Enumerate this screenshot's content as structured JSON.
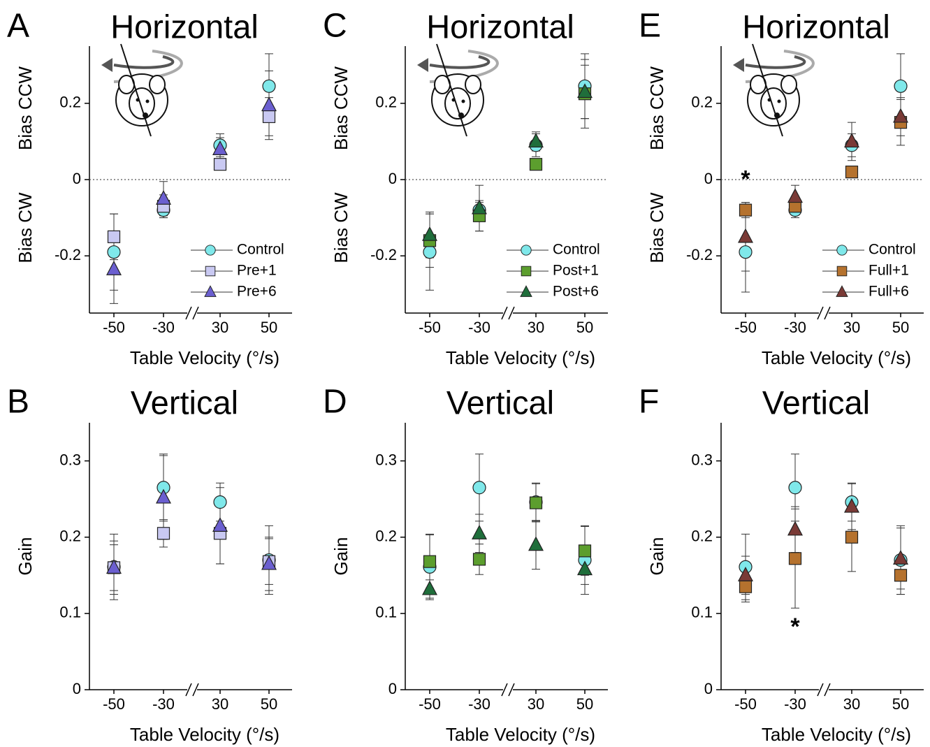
{
  "chart_data": [
    {
      "type": "scatter",
      "panel": "A",
      "title": "Horizontal",
      "ylabels": [
        "Bias CCW",
        "Bias CW"
      ],
      "xlabel": "Table Velocity (°/s)",
      "categories": [
        "-50",
        "-30",
        "30",
        "50"
      ],
      "ylim": [
        -0.35,
        0.35
      ],
      "yticks": [
        -0.2,
        0,
        0.2
      ],
      "zero_line": true,
      "legend": "lower right",
      "series": [
        {
          "name": "Control",
          "color": "#7fe8ea",
          "marker": "circle",
          "values": [
            -0.19,
            -0.08,
            0.09,
            0.245
          ],
          "errors": [
            0.1,
            0.02,
            0.03,
            0.085
          ]
        },
        {
          "name": "Pre+1",
          "color": "#c9c9f2",
          "marker": "square",
          "values": [
            -0.15,
            -0.07,
            0.04,
            0.165
          ],
          "errors": [
            0.06,
            0.03,
            0.01,
            0.05
          ]
        },
        {
          "name": "Pre+6",
          "color": "#6b5fd0",
          "marker": "triangle",
          "values": [
            -0.235,
            -0.05,
            0.08,
            0.195
          ],
          "errors": [
            0.09,
            0.045,
            0.03,
            0.09
          ]
        }
      ]
    },
    {
      "type": "scatter",
      "panel": "B",
      "title": "Vertical",
      "ylabel": "Gain",
      "xlabel": "Table Velocity (°/s)",
      "categories": [
        "-50",
        "-30",
        "30",
        "50"
      ],
      "ylim": [
        0,
        0.35
      ],
      "yticks": [
        0,
        0.1,
        0.2,
        0.3
      ],
      "series": [
        {
          "name": "Control",
          "color": "#7fe8ea",
          "marker": "circle",
          "values": [
            0.161,
            0.265,
            0.246,
            0.17
          ],
          "errors": [
            0.043,
            0.044,
            0.025,
            0.045
          ]
        },
        {
          "name": "Pre+1",
          "color": "#c9c9f2",
          "marker": "square",
          "values": [
            0.16,
            0.205,
            0.205,
            0.168
          ],
          "errors": [
            0.03,
            0.018,
            0.04,
            0.03
          ]
        },
        {
          "name": "Pre+6",
          "color": "#6b5fd0",
          "marker": "triangle",
          "values": [
            0.16,
            0.252,
            0.215,
            0.165
          ],
          "errors": [
            0.035,
            0.055,
            0.05,
            0.035
          ]
        }
      ]
    },
    {
      "type": "scatter",
      "panel": "C",
      "title": "Horizontal",
      "ylabels": [
        "Bias CCW",
        "Bias CW"
      ],
      "xlabel": "Table Velocity (°/s)",
      "categories": [
        "-50",
        "-30",
        "30",
        "50"
      ],
      "ylim": [
        -0.35,
        0.35
      ],
      "yticks": [
        -0.2,
        0,
        0.2
      ],
      "zero_line": true,
      "legend": "lower right",
      "series": [
        {
          "name": "Control",
          "color": "#7fe8ea",
          "marker": "circle",
          "values": [
            -0.19,
            -0.08,
            0.09,
            0.245
          ],
          "errors": [
            0.1,
            0.02,
            0.03,
            0.085
          ]
        },
        {
          "name": "Post+1",
          "color": "#5c9e2e",
          "marker": "square",
          "values": [
            -0.16,
            -0.095,
            0.04,
            0.225
          ],
          "errors": [
            0.07,
            0.04,
            0.01,
            0.09
          ]
        },
        {
          "name": "Post+6",
          "color": "#1f6e3b",
          "marker": "triangle",
          "values": [
            -0.145,
            -0.075,
            0.1,
            0.23
          ],
          "errors": [
            0.06,
            0.06,
            0.025,
            0.07
          ]
        }
      ]
    },
    {
      "type": "scatter",
      "panel": "D",
      "title": "Vertical",
      "ylabel": "Gain",
      "xlabel": "Table Velocity (°/s)",
      "categories": [
        "-50",
        "-30",
        "30",
        "50"
      ],
      "ylim": [
        0,
        0.35
      ],
      "yticks": [
        0,
        0.1,
        0.2,
        0.3
      ],
      "series": [
        {
          "name": "Control",
          "color": "#7fe8ea",
          "marker": "circle",
          "values": [
            0.161,
            0.265,
            0.246,
            0.17
          ],
          "errors": [
            0.043,
            0.044,
            0.025,
            0.045
          ]
        },
        {
          "name": "Post+1",
          "color": "#5c9e2e",
          "marker": "square",
          "values": [
            0.168,
            0.171,
            0.245,
            0.182
          ],
          "errors": [
            0.035,
            0.02,
            0.025,
            0.032
          ]
        },
        {
          "name": "Post+6",
          "color": "#1f6e3b",
          "marker": "triangle",
          "values": [
            0.132,
            0.205,
            0.19,
            0.158
          ],
          "errors": [
            0.012,
            0.025,
            0.032,
            0.02
          ]
        }
      ]
    },
    {
      "type": "scatter",
      "panel": "E",
      "title": "Horizontal",
      "ylabels": [
        "Bias CCW",
        "Bias CW"
      ],
      "xlabel": "Table Velocity (°/s)",
      "categories": [
        "-50",
        "-30",
        "30",
        "50"
      ],
      "ylim": [
        -0.35,
        0.35
      ],
      "yticks": [
        -0.2,
        0,
        0.2
      ],
      "zero_line": true,
      "legend": "lower right",
      "annotations": [
        {
          "text": "*",
          "x": "-50",
          "y": 0.012
        }
      ],
      "series": [
        {
          "name": "Control",
          "color": "#7fe8ea",
          "marker": "circle",
          "values": [
            -0.19,
            -0.08,
            0.09,
            0.245
          ],
          "errors": [
            0.105,
            0.02,
            0.03,
            0.085
          ]
        },
        {
          "name": "Full+1",
          "color": "#b5722e",
          "marker": "square",
          "values": [
            -0.08,
            -0.07,
            0.02,
            0.15
          ],
          "errors": [
            0.02,
            0.02,
            0.01,
            0.06
          ]
        },
        {
          "name": "Full+6",
          "color": "#7a3a36",
          "marker": "triangle",
          "values": [
            -0.15,
            -0.045,
            0.1,
            0.165
          ],
          "errors": [
            0.09,
            0.03,
            0.05,
            0.05
          ]
        }
      ]
    },
    {
      "type": "scatter",
      "panel": "F",
      "title": "Vertical",
      "ylabel": "Gain",
      "xlabel": "Table Velocity (°/s)",
      "categories": [
        "-50",
        "-30",
        "30",
        "50"
      ],
      "ylim": [
        0,
        0.35
      ],
      "yticks": [
        0,
        0.1,
        0.2,
        0.3
      ],
      "annotations": [
        {
          "text": "*",
          "x": "-30",
          "y": 0.088
        }
      ],
      "series": [
        {
          "name": "Control",
          "color": "#7fe8ea",
          "marker": "circle",
          "values": [
            0.161,
            0.265,
            0.246,
            0.17
          ],
          "errors": [
            0.043,
            0.044,
            0.025,
            0.045
          ]
        },
        {
          "name": "Full+1",
          "color": "#b5722e",
          "marker": "square",
          "values": [
            0.135,
            0.172,
            0.2,
            0.15
          ],
          "errors": [
            0.02,
            0.065,
            0.045,
            0.025
          ]
        },
        {
          "name": "Full+6",
          "color": "#7a3a36",
          "marker": "triangle",
          "values": [
            0.15,
            0.21,
            0.24,
            0.172
          ],
          "errors": [
            0.025,
            0.03,
            0.03,
            0.04
          ]
        }
      ]
    }
  ]
}
